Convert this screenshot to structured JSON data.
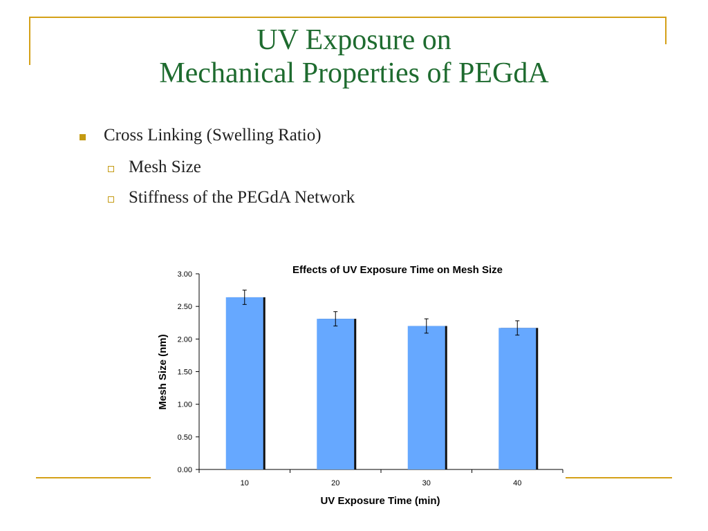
{
  "slide": {
    "title_line1": "UV Exposure on",
    "title_line2": "Mechanical Properties of PEGdA",
    "bullets": [
      {
        "label": "Cross Linking (Swelling Ratio)",
        "children": [
          "Mesh Size",
          "Stiffness of the PEGdA Network"
        ]
      }
    ]
  },
  "colors": {
    "title": "#1e6b2f",
    "accent_rule": "#d4a017",
    "bar_fill": "#66a8ff",
    "bar_shadow": "#111111"
  },
  "chart_data": {
    "type": "bar",
    "title": "Effects of UV Exposure Time on Mesh Size",
    "xlabel": "UV Exposure Time (min)",
    "ylabel": "Mesh Size (nm)",
    "categories": [
      "10",
      "20",
      "30",
      "40"
    ],
    "values": [
      2.64,
      2.31,
      2.2,
      2.17
    ],
    "errors": [
      0.11,
      0.11,
      0.11,
      0.11
    ],
    "ylim": [
      0,
      3
    ],
    "yticks": [
      "0.00",
      "0.50",
      "1.00",
      "1.50",
      "2.00",
      "2.50",
      "3.00"
    ],
    "grid": false,
    "legend": "none"
  }
}
